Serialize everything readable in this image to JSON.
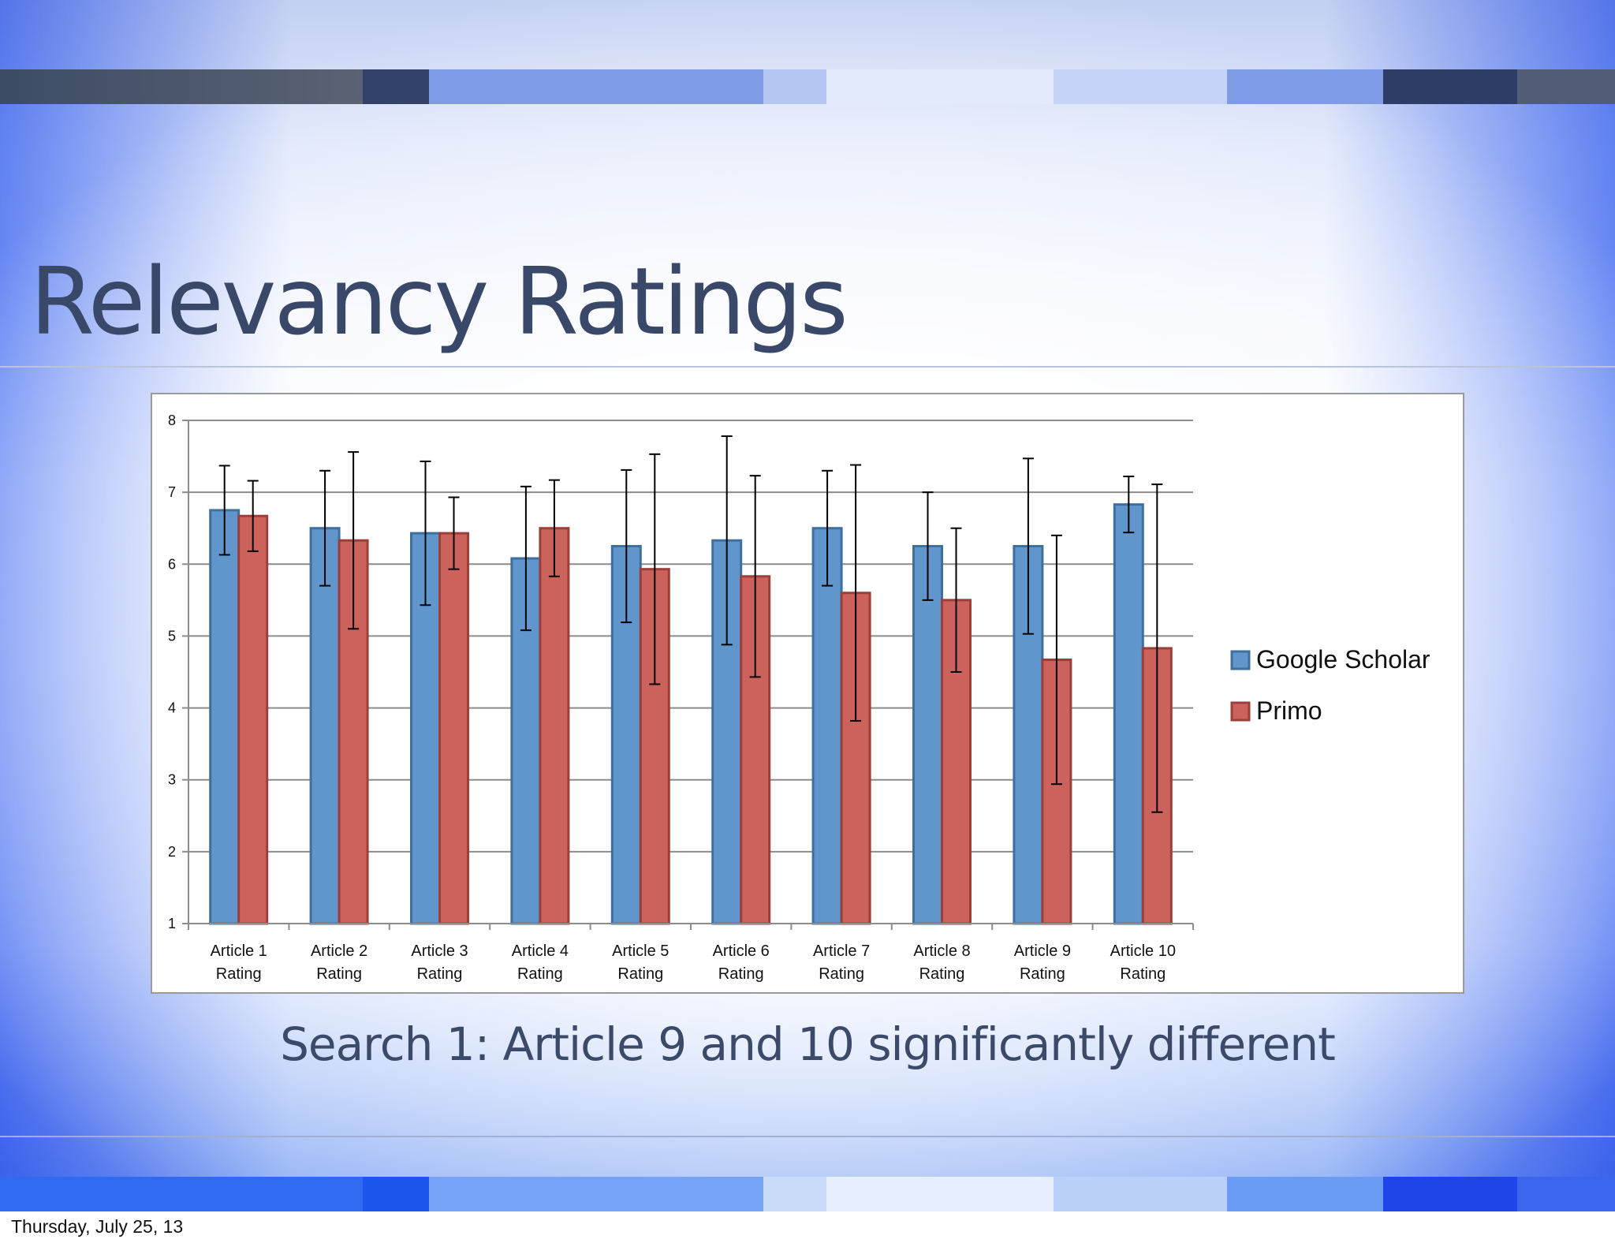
{
  "slide": {
    "title": "Relevancy Ratings",
    "subtitle": "Search 1: Article 9 and 10 significantly different",
    "footer_date": "Thursday, July 25, 13"
  },
  "colors": {
    "title": "#394868",
    "series_google": "#6096cc",
    "series_primo": "#cb625c"
  },
  "chart_data": {
    "type": "bar",
    "categories": [
      "Article 1 Rating",
      "Article 2 Rating",
      "Article 3 Rating",
      "Article 4 Rating",
      "Article 5 Rating",
      "Article 6 Rating",
      "Article 7 Rating",
      "Article 8 Rating",
      "Article 9 Rating",
      "Article 10 Rating"
    ],
    "category_lines": [
      [
        "Article 1",
        "Rating"
      ],
      [
        "Article 2",
        "Rating"
      ],
      [
        "Article 3",
        "Rating"
      ],
      [
        "Article 4",
        "Rating"
      ],
      [
        "Article 5",
        "Rating"
      ],
      [
        "Article 6",
        "Rating"
      ],
      [
        "Article 7",
        "Rating"
      ],
      [
        "Article 8",
        "Rating"
      ],
      [
        "Article 9",
        "Rating"
      ],
      [
        "Article 10",
        "Rating"
      ]
    ],
    "series": [
      {
        "name": "Google Scholar",
        "color": "#6096cc",
        "stroke": "#3f6f9e",
        "values": [
          6.75,
          6.5,
          6.43,
          6.08,
          6.25,
          6.33,
          6.5,
          6.25,
          6.25,
          6.83
        ],
        "error": [
          0.62,
          0.8,
          1.0,
          1.0,
          1.06,
          1.45,
          0.8,
          0.75,
          1.22,
          0.39
        ]
      },
      {
        "name": "Primo",
        "color": "#cb625c",
        "stroke": "#9c3f3b",
        "values": [
          6.67,
          6.33,
          6.43,
          6.5,
          5.93,
          5.83,
          5.6,
          5.5,
          4.67,
          4.83
        ],
        "error": [
          0.49,
          1.23,
          0.5,
          0.67,
          1.6,
          1.4,
          1.78,
          1.0,
          1.73,
          2.28
        ]
      }
    ],
    "title": "",
    "xlabel": "",
    "ylabel": "",
    "ylim": [
      1,
      8
    ],
    "yticks": [
      1,
      2,
      3,
      4,
      5,
      6,
      7,
      8
    ],
    "grid": true,
    "legend": "right"
  }
}
